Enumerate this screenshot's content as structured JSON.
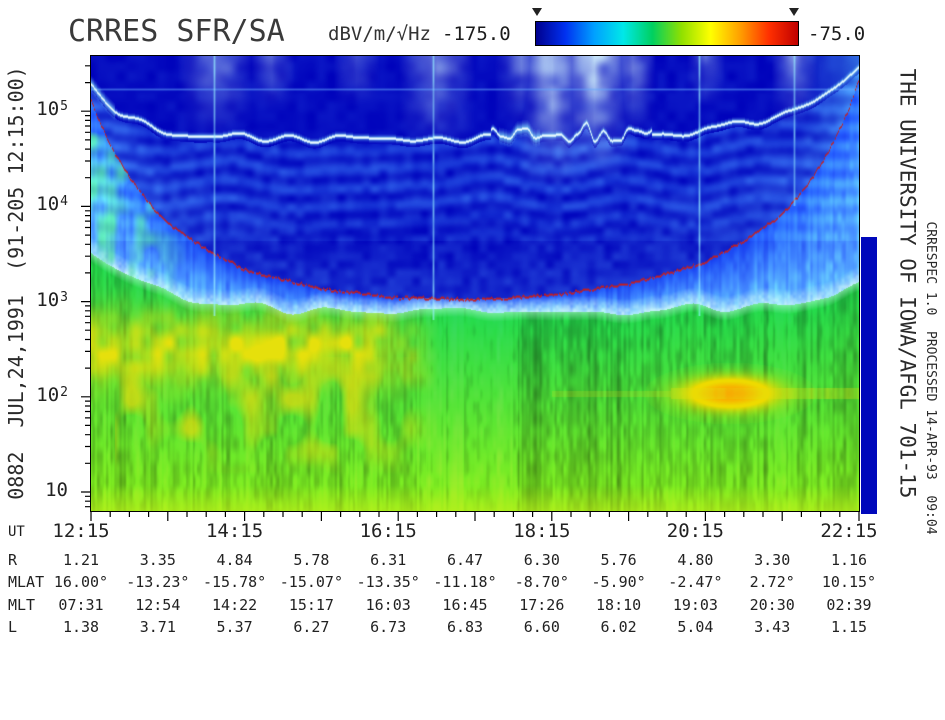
{
  "annotations": {
    "left_vertical": "0882  JUL,24,1991  (91-205 12:15:00)",
    "right_vertical_primary": "THE UNIVERSITY OF IOWA/AFGL 701-15",
    "right_vertical_secondary": "CRRESPEC 1.0  PROCESSED 14-APR-93  09:04"
  },
  "chart_data": {
    "type": "heatmap",
    "subtype": "frequency-time spectrogram",
    "title": "CRRES SFR/SA",
    "x": {
      "label": "UT",
      "span_hours": 10,
      "ticks": [
        {
          "label": "12:15",
          "hour": 0
        },
        {
          "label": "14:15",
          "hour": 2
        },
        {
          "label": "16:15",
          "hour": 4
        },
        {
          "label": "18:15",
          "hour": 6
        },
        {
          "label": "20:15",
          "hour": 8
        },
        {
          "label": "22:15",
          "hour": 10
        }
      ]
    },
    "y": {
      "scale": "log10",
      "unit": "Hz",
      "min_hz": 6,
      "max_hz": 380000,
      "ticks": [
        {
          "base": "10",
          "exp": "5",
          "decade": 5
        },
        {
          "base": "10",
          "exp": "4",
          "decade": 4
        },
        {
          "base": "10",
          "exp": "3",
          "decade": 3
        },
        {
          "base": "10",
          "exp": "2",
          "decade": 2
        },
        {
          "base": "10",
          "exp": "",
          "decade": 1
        }
      ]
    },
    "z": {
      "label": "dBV/m/√Hz",
      "min_db": -175.0,
      "max_db": -75.0,
      "min_label": "-175.0",
      "max_label": "-75.0"
    },
    "colorbar_stops": [
      "#00008e",
      "#0030f0",
      "#00a0ff",
      "#00e8e8",
      "#00d060",
      "#90e000",
      "#ffff00",
      "#ffa000",
      "#ff3000",
      "#c00000"
    ],
    "ephemeris": {
      "rows": [
        {
          "label": "R",
          "values": [
            "1.21",
            "3.35",
            "4.84",
            "5.78",
            "6.31",
            "6.47",
            "6.30",
            "5.76",
            "4.80",
            "3.30",
            "1.16"
          ]
        },
        {
          "label": "MLAT",
          "values": [
            "16.00°",
            "-13.23°",
            "-15.78°",
            "-15.07°",
            "-13.35°",
            "-11.18°",
            "-8.70°",
            "-5.90°",
            "-2.47°",
            "2.72°",
            "10.15°"
          ]
        },
        {
          "label": "MLT",
          "values": [
            "07:31",
            "12:54",
            "14:22",
            "15:17",
            "16:03",
            "16:45",
            "17:26",
            "18:10",
            "19:03",
            "20:30",
            "02:39"
          ]
        },
        {
          "label": "L",
          "values": [
            "1.38",
            "3.71",
            "5.37",
            "6.27",
            "6.73",
            "6.83",
            "6.60",
            "6.02",
            "5.04",
            "3.43",
            "1.15"
          ]
        }
      ]
    },
    "L_shell_hourly": [
      1.38,
      3.71,
      5.37,
      6.27,
      6.73,
      6.83,
      6.6,
      6.02,
      5.04,
      3.43,
      1.15
    ],
    "features": {
      "red_trace": {
        "name": "electron cyclotron frequency trace",
        "coeff_hz": 339000
      },
      "uhr_trace": {
        "name": "upper hybrid resonance band"
      },
      "interference_lines_hours": [
        1.6,
        4.45,
        7.92,
        9.16
      ],
      "emission_blob": {
        "hour": 8.32,
        "freq_hz": 120
      },
      "data_gap_color": "#0008bb"
    }
  }
}
